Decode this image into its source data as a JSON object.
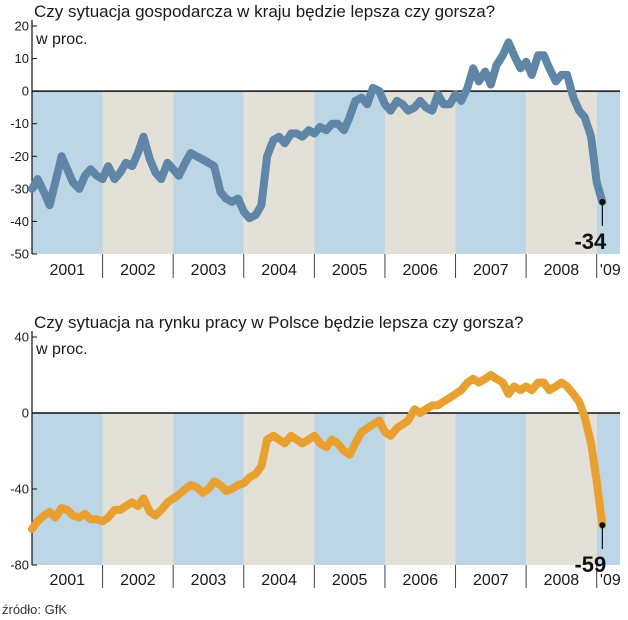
{
  "source": "źródło: GfK",
  "colors": {
    "band_blue": "#bcd6e6",
    "band_grey": "#e3e0d8",
    "series1": "#5f86a6",
    "series2": "#e8a030"
  },
  "chart_data": [
    {
      "type": "line",
      "title": "Czy sytuacja gospodarcza w kraju będzie lepsza czy gorsza?",
      "ylabel": "w proc.",
      "ylim": [
        -50,
        20
      ],
      "yticks": [
        20,
        10,
        0,
        -10,
        -20,
        -30,
        -40,
        -50
      ],
      "xlim": [
        2001,
        2009.33
      ],
      "years": [
        "2001",
        "2002",
        "2003",
        "2004",
        "2005",
        "2006",
        "2007",
        "2008",
        "'09"
      ],
      "year_starts": [
        2001,
        2002,
        2003,
        2004,
        2005,
        2006,
        2007,
        2008,
        2009
      ],
      "final_label": "-34",
      "series": [
        {
          "name": "Czy sytuacja gospodarcza w kraju będzie lepsza czy gorsza?",
          "x": [
            2001,
            2001.08,
            2001.17,
            2001.25,
            2001.33,
            2001.42,
            2001.5,
            2001.58,
            2001.67,
            2001.75,
            2001.83,
            2001.92,
            2002,
            2002.08,
            2002.17,
            2002.25,
            2002.33,
            2002.42,
            2002.5,
            2002.58,
            2002.67,
            2002.75,
            2002.83,
            2002.92,
            2003,
            2003.08,
            2003.17,
            2003.25,
            2003.33,
            2003.42,
            2003.5,
            2003.58,
            2003.67,
            2003.75,
            2003.83,
            2003.92,
            2004,
            2004.08,
            2004.17,
            2004.25,
            2004.33,
            2004.42,
            2004.5,
            2004.58,
            2004.67,
            2004.75,
            2004.83,
            2004.92,
            2005,
            2005.08,
            2005.17,
            2005.25,
            2005.33,
            2005.42,
            2005.5,
            2005.58,
            2005.67,
            2005.75,
            2005.83,
            2005.92,
            2006,
            2006.08,
            2006.17,
            2006.25,
            2006.33,
            2006.42,
            2006.5,
            2006.58,
            2006.67,
            2006.75,
            2006.83,
            2006.92,
            2007,
            2007.08,
            2007.17,
            2007.25,
            2007.33,
            2007.42,
            2007.5,
            2007.58,
            2007.67,
            2007.75,
            2007.83,
            2007.92,
            2008,
            2008.08,
            2008.17,
            2008.25,
            2008.33,
            2008.42,
            2008.5,
            2008.58,
            2008.67,
            2008.75,
            2008.83,
            2008.92,
            2009,
            2009.08
          ],
          "y": [
            -30,
            -27,
            -31,
            -35,
            -28,
            -20,
            -24,
            -28,
            -30,
            -26,
            -24,
            -26,
            -27,
            -23,
            -27,
            -25,
            -22,
            -23,
            -19,
            -14,
            -21,
            -25,
            -27,
            -22,
            -24,
            -26,
            -22,
            -19,
            -20,
            -21,
            -22,
            -23,
            -31,
            -33,
            -34,
            -33,
            -37,
            -39,
            -38,
            -35,
            -20,
            -15,
            -14,
            -16,
            -13,
            -13,
            -14,
            -12,
            -13,
            -11,
            -12,
            -10,
            -10,
            -12,
            -8,
            -3,
            -2,
            -4,
            1,
            0,
            -4,
            -6,
            -3,
            -4,
            -6,
            -5,
            -3,
            -5,
            -6,
            -1,
            -4,
            -4,
            -1,
            -3,
            1,
            7,
            3,
            6,
            2,
            8,
            11,
            15,
            11,
            7,
            9,
            5,
            11,
            11,
            7,
            3,
            5,
            5,
            -2,
            -6,
            -8,
            -14,
            -28,
            -34
          ]
        }
      ]
    },
    {
      "type": "line",
      "title": "Czy sytuacja na rynku pracy w Polsce będzie lepsza czy gorsza?",
      "ylabel": "w proc.",
      "ylim": [
        -80,
        40
      ],
      "yticks": [
        40,
        0,
        -40,
        -80
      ],
      "xlim": [
        2001,
        2009.33
      ],
      "years": [
        "2001",
        "2002",
        "2003",
        "2004",
        "2005",
        "2006",
        "2007",
        "2008",
        "'09"
      ],
      "year_starts": [
        2001,
        2002,
        2003,
        2004,
        2005,
        2006,
        2007,
        2008,
        2009
      ],
      "final_label": "-59",
      "series": [
        {
          "name": "Czy sytuacja na rynku pracy w Polsce będzie lepsza czy gorsza?",
          "x": [
            2001,
            2001.08,
            2001.17,
            2001.25,
            2001.33,
            2001.42,
            2001.5,
            2001.58,
            2001.67,
            2001.75,
            2001.83,
            2001.92,
            2002,
            2002.08,
            2002.17,
            2002.25,
            2002.33,
            2002.42,
            2002.5,
            2002.58,
            2002.67,
            2002.75,
            2002.83,
            2002.92,
            2003,
            2003.08,
            2003.17,
            2003.25,
            2003.33,
            2003.42,
            2003.5,
            2003.58,
            2003.67,
            2003.75,
            2003.83,
            2003.92,
            2004,
            2004.08,
            2004.17,
            2004.25,
            2004.33,
            2004.42,
            2004.5,
            2004.58,
            2004.67,
            2004.75,
            2004.83,
            2004.92,
            2005,
            2005.08,
            2005.17,
            2005.25,
            2005.33,
            2005.42,
            2005.5,
            2005.58,
            2005.67,
            2005.75,
            2005.83,
            2005.92,
            2006,
            2006.08,
            2006.17,
            2006.25,
            2006.33,
            2006.42,
            2006.5,
            2006.58,
            2006.67,
            2006.75,
            2006.83,
            2006.92,
            2007,
            2007.08,
            2007.17,
            2007.25,
            2007.33,
            2007.42,
            2007.5,
            2007.58,
            2007.67,
            2007.75,
            2007.83,
            2007.92,
            2008,
            2008.08,
            2008.17,
            2008.25,
            2008.33,
            2008.42,
            2008.5,
            2008.58,
            2008.67,
            2008.75,
            2008.83,
            2008.92,
            2009,
            2009.08
          ],
          "y": [
            -61,
            -57,
            -54,
            -52,
            -55,
            -50,
            -51,
            -54,
            -55,
            -53,
            -56,
            -56,
            -57,
            -55,
            -51,
            -51,
            -49,
            -47,
            -49,
            -45,
            -52,
            -54,
            -51,
            -47,
            -45,
            -43,
            -40,
            -38,
            -39,
            -42,
            -40,
            -36,
            -38,
            -41,
            -40,
            -38,
            -37,
            -34,
            -32,
            -28,
            -14,
            -12,
            -14,
            -16,
            -12,
            -14,
            -16,
            -14,
            -12,
            -16,
            -18,
            -14,
            -16,
            -20,
            -22,
            -16,
            -10,
            -8,
            -6,
            -4,
            -10,
            -12,
            -8,
            -6,
            -4,
            2,
            0,
            2,
            4,
            4,
            6,
            8,
            10,
            12,
            16,
            18,
            16,
            18,
            20,
            18,
            16,
            10,
            14,
            12,
            14,
            12,
            16,
            16,
            12,
            14,
            16,
            14,
            10,
            6,
            -2,
            -16,
            -36,
            -59
          ]
        }
      ]
    }
  ]
}
